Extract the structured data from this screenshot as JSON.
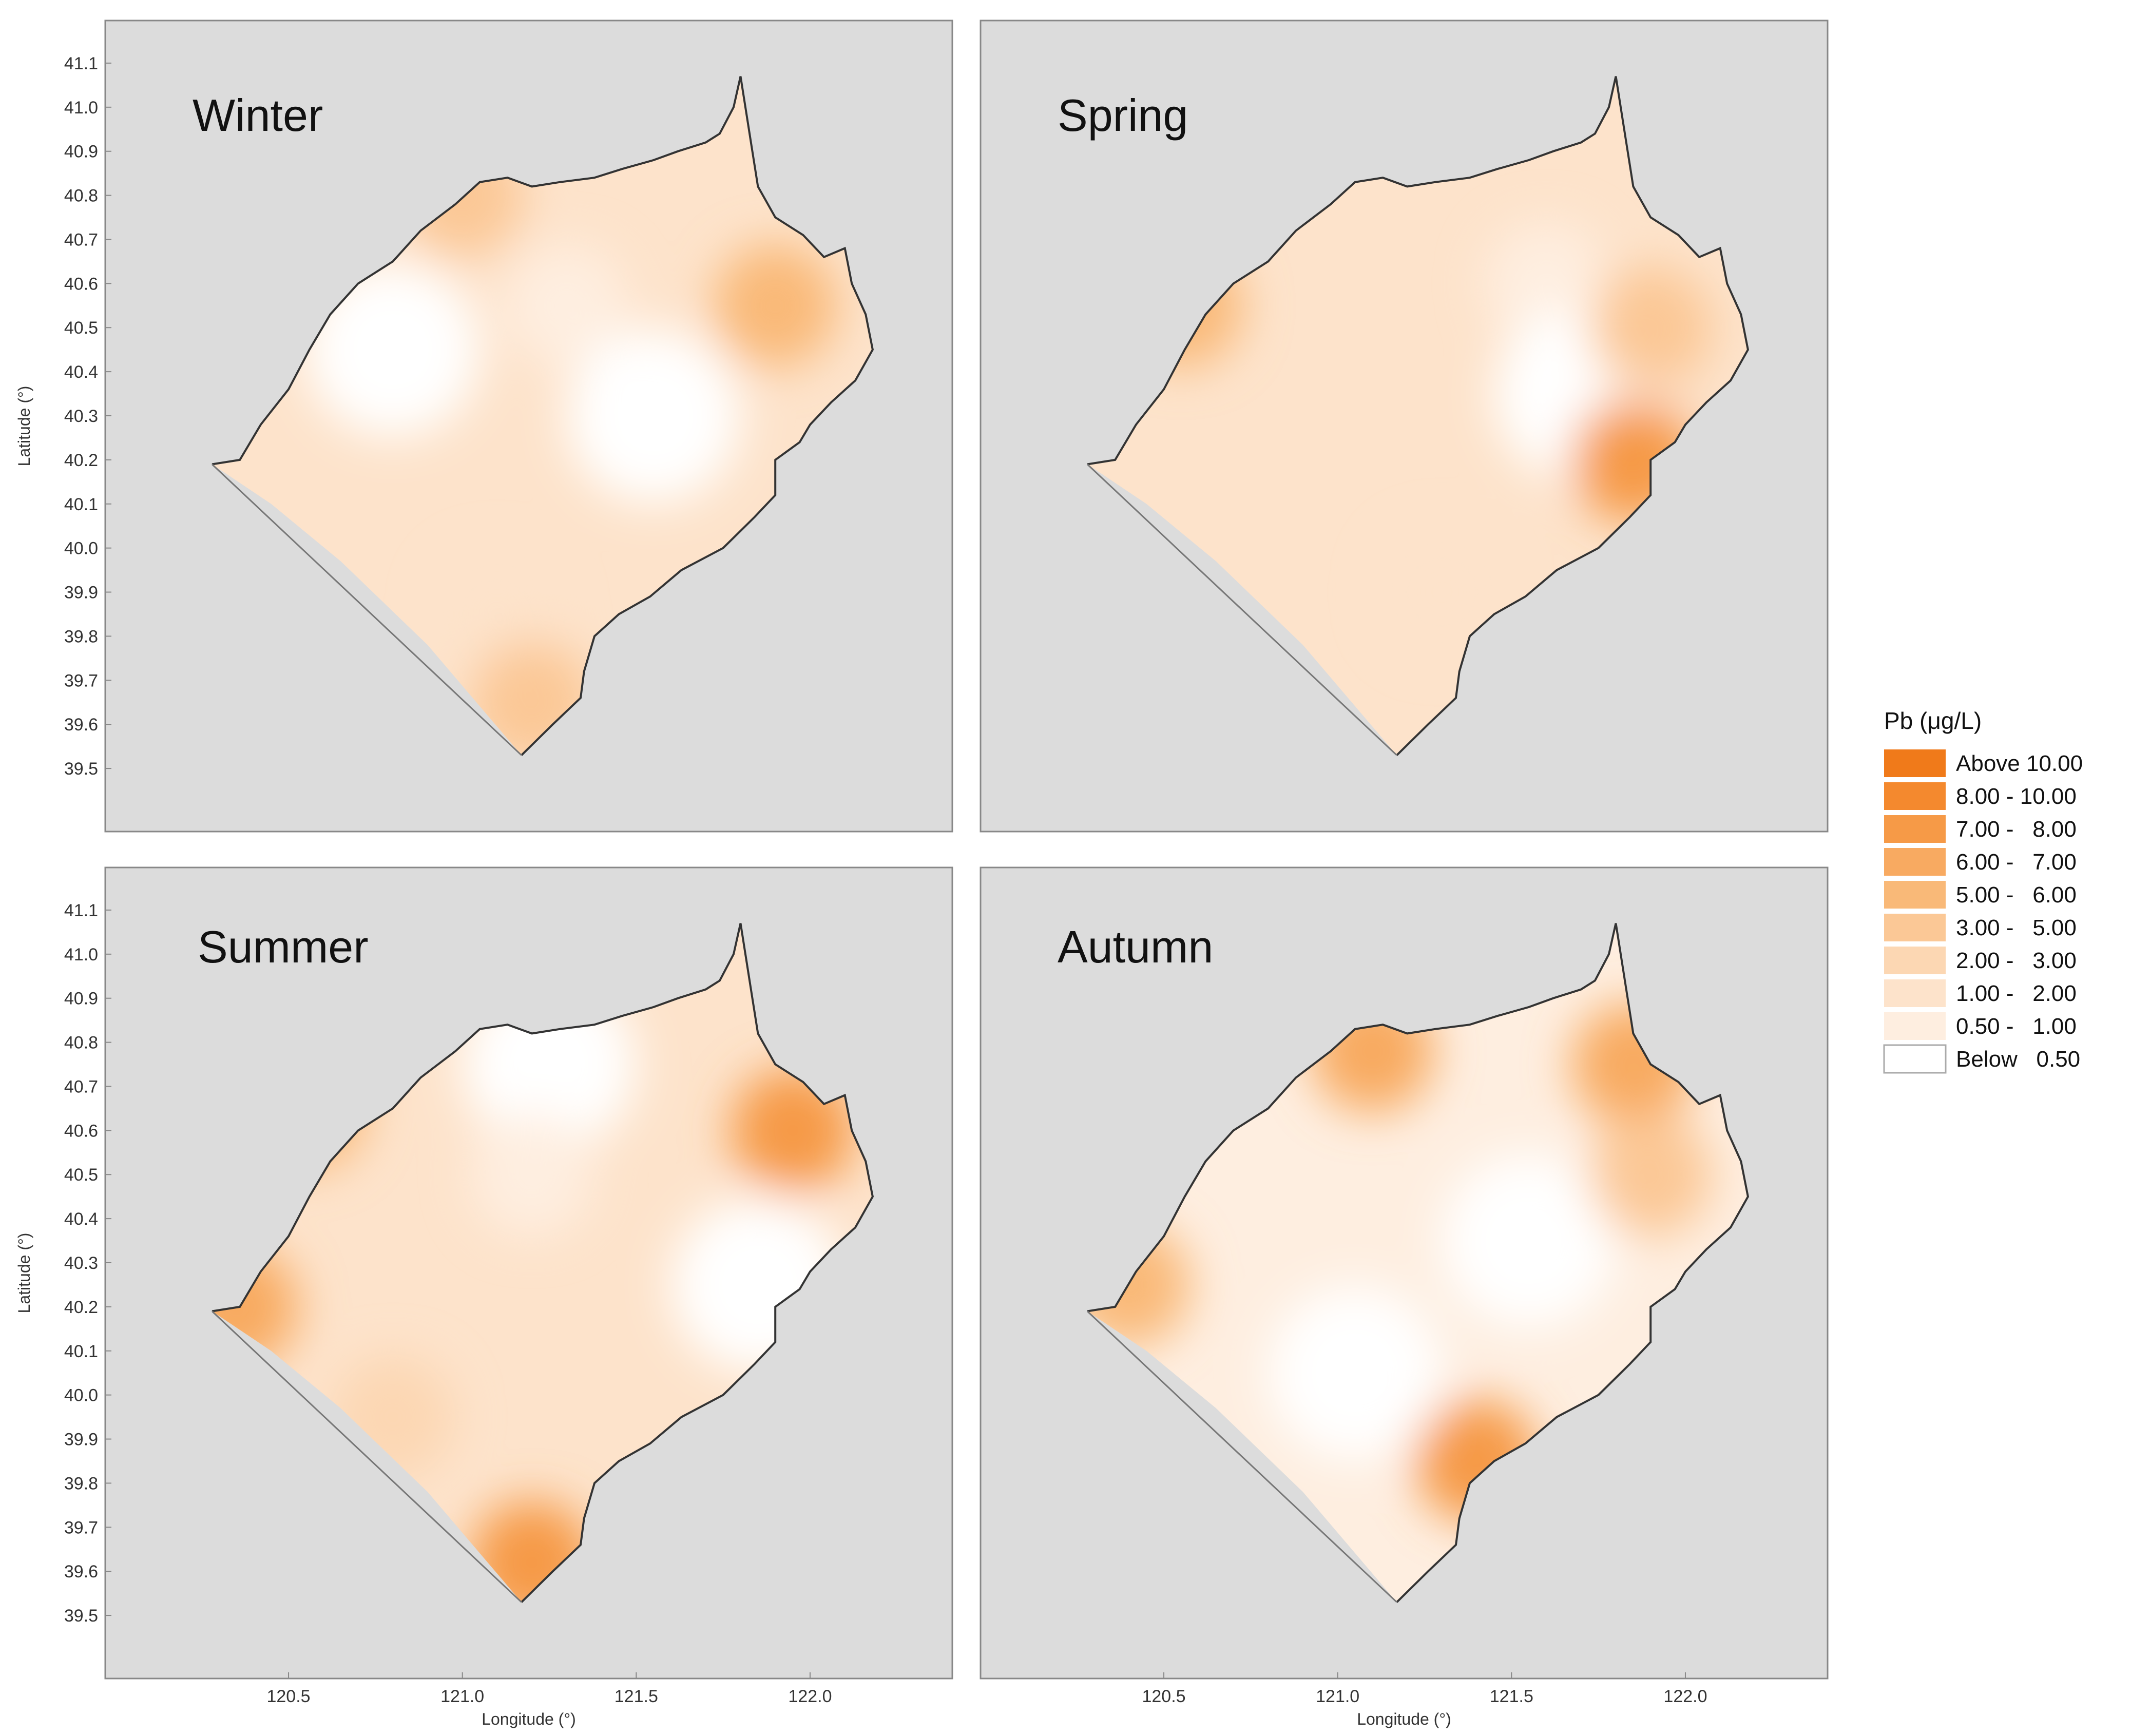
{
  "panels": [
    {
      "season": "Winter",
      "mid_class": 2,
      "spots": [
        {
          "lon": 121.3,
          "lat": 40.55,
          "cls": 1
        },
        {
          "lon": 121.55,
          "lat": 40.3,
          "cls": 0
        },
        {
          "lon": 120.8,
          "lat": 40.45,
          "cls": 0
        },
        {
          "lon": 121.1,
          "lat": 39.85,
          "cls": 2
        },
        {
          "lon": 121.9,
          "lat": 40.55,
          "cls": 5
        },
        {
          "lon": 121.0,
          "lat": 40.8,
          "cls": 4
        },
        {
          "lon": 121.2,
          "lat": 39.65,
          "cls": 4
        }
      ]
    },
    {
      "season": "Spring",
      "mid_class": 2,
      "spots": [
        {
          "lon": 121.6,
          "lat": 40.6,
          "cls": 1
        },
        {
          "lon": 121.7,
          "lat": 40.35,
          "cls": 0
        },
        {
          "lon": 121.3,
          "lat": 39.9,
          "cls": 2
        },
        {
          "lon": 121.9,
          "lat": 40.5,
          "cls": 4
        },
        {
          "lon": 120.55,
          "lat": 40.55,
          "cls": 5
        },
        {
          "lon": 121.85,
          "lat": 40.2,
          "cls": 7
        }
      ]
    },
    {
      "season": "Summer",
      "mid_class": 2,
      "spots": [
        {
          "lon": 121.25,
          "lat": 40.75,
          "cls": 0
        },
        {
          "lon": 121.2,
          "lat": 40.5,
          "cls": 1
        },
        {
          "lon": 121.85,
          "lat": 40.25,
          "cls": 0
        },
        {
          "lon": 120.8,
          "lat": 39.95,
          "cls": 3
        },
        {
          "lon": 121.95,
          "lat": 40.6,
          "cls": 7
        },
        {
          "lon": 121.2,
          "lat": 39.62,
          "cls": 7
        },
        {
          "lon": 120.35,
          "lat": 40.2,
          "cls": 6
        },
        {
          "lon": 120.55,
          "lat": 40.65,
          "cls": 5
        }
      ]
    },
    {
      "season": "Autumn",
      "mid_class": 1,
      "spots": [
        {
          "lon": 121.55,
          "lat": 40.35,
          "cls": 0
        },
        {
          "lon": 121.05,
          "lat": 40.05,
          "cls": 0
        },
        {
          "lon": 121.1,
          "lat": 40.78,
          "cls": 6
        },
        {
          "lon": 121.85,
          "lat": 40.75,
          "cls": 6
        },
        {
          "lon": 121.9,
          "lat": 40.5,
          "cls": 4
        },
        {
          "lon": 121.4,
          "lat": 39.85,
          "cls": 7
        },
        {
          "lon": 120.4,
          "lat": 40.25,
          "cls": 5
        }
      ]
    }
  ],
  "axes": {
    "ylabel": "Latitude (°)",
    "xlabel": "Longitude (°)",
    "yticks": [
      "39.5",
      "39.6",
      "39.7",
      "39.8",
      "39.9",
      "40.0",
      "40.1",
      "40.2",
      "40.3",
      "40.4",
      "40.5",
      "40.6",
      "40.7",
      "40.8",
      "40.9",
      "41.0",
      "41.1"
    ],
    "xticks": [
      "120.5",
      "121.0",
      "121.5",
      "122.0"
    ],
    "ylim": [
      39.45,
      41.15
    ],
    "xlim": [
      120.15,
      122.35
    ]
  },
  "legend": {
    "title": "Pb (μg/L)",
    "items": [
      {
        "label": "Above 10.00",
        "color": "#f07a1a"
      },
      {
        "label": "8.00 - 10.00",
        "color": "#f4892e"
      },
      {
        "label": "7.00 -   8.00",
        "color": "#f69a47"
      },
      {
        "label": "6.00 -   7.00",
        "color": "#f8aa61"
      },
      {
        "label": "5.00 -   6.00",
        "color": "#f9b978"
      },
      {
        "label": "3.00 -   5.00",
        "color": "#fbc896"
      },
      {
        "label": "2.00 -   3.00",
        "color": "#fcd7b3"
      },
      {
        "label": "1.00 -   2.00",
        "color": "#fde3cb"
      },
      {
        "label": "0.50 -   1.00",
        "color": "#feeee0"
      },
      {
        "label": "Below   0.50",
        "color": "#ffffff"
      }
    ]
  },
  "colors": {
    "panel_bg": "#dcdcdc",
    "frame": "#888888",
    "coast": "#333333"
  }
}
